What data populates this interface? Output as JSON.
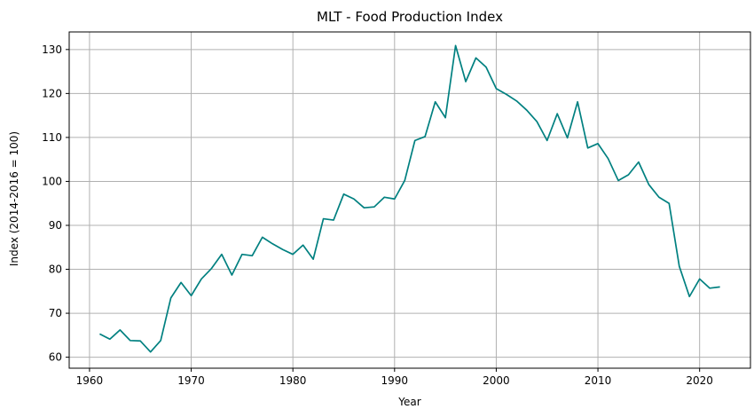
{
  "chart_data": {
    "type": "line",
    "title": "MLT - Food Production Index",
    "xlabel": "Year",
    "ylabel": "Index (2014-2016 = 100)",
    "xlim": [
      1958.0,
      2025.0
    ],
    "ylim": [
      57.5,
      134.0
    ],
    "xticks": [
      1960,
      1970,
      1980,
      1990,
      2000,
      2010,
      2020
    ],
    "yticks": [
      60,
      70,
      80,
      90,
      100,
      110,
      120,
      130
    ],
    "grid": true,
    "line_color": "#008080",
    "series": [
      {
        "x": [
          1961,
          1962,
          1963,
          1964,
          1965,
          1966,
          1967,
          1968,
          1969,
          1970,
          1971,
          1972,
          1973,
          1974,
          1975,
          1976,
          1977,
          1978,
          1979,
          1980,
          1981,
          1982,
          1983,
          1984,
          1985,
          1986,
          1987,
          1988,
          1989,
          1990,
          1991,
          1992,
          1993,
          1994,
          1995,
          1996,
          1997,
          1998,
          1999,
          2000,
          2001,
          2002,
          2003,
          2004,
          2005,
          2006,
          2007,
          2008,
          2009,
          2010,
          2011,
          2012,
          2013,
          2014,
          2015,
          2016,
          2017,
          2018,
          2019,
          2020,
          2021,
          2022
        ],
        "values": [
          65.3,
          64.1,
          66.2,
          63.8,
          63.7,
          61.2,
          63.8,
          73.5,
          77.0,
          74.0,
          77.8,
          80.2,
          83.4,
          78.7,
          83.4,
          83.1,
          87.3,
          85.8,
          84.5,
          83.4,
          85.5,
          82.3,
          91.5,
          91.2,
          97.1,
          96.0,
          94.0,
          94.2,
          96.4,
          96.0,
          100.2,
          109.3,
          110.2,
          118.1,
          114.5,
          130.9,
          122.7,
          128.1,
          126.0,
          121.1,
          119.8,
          118.3,
          116.2,
          113.6,
          109.3,
          115.4,
          109.9,
          118.1,
          107.6,
          108.6,
          105.2,
          100.2,
          101.5,
          104.4,
          99.3,
          96.4,
          95.0,
          80.7,
          73.8,
          77.8,
          75.7,
          76.0
        ]
      }
    ]
  }
}
